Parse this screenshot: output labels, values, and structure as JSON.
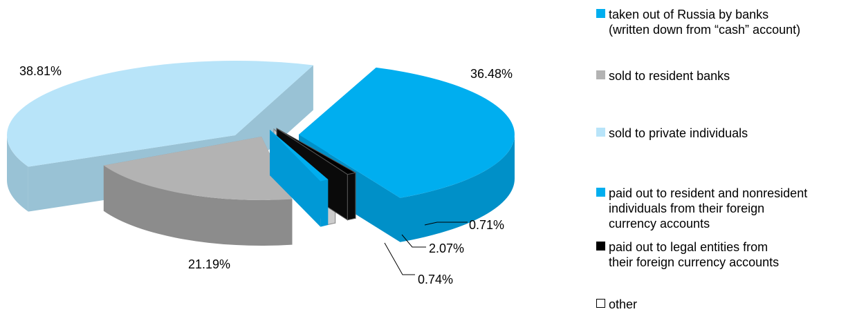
{
  "chart_data": {
    "type": "pie",
    "style": "3d-exploded",
    "slices": [
      {
        "label": "taken out of Russia by banks\n(written down from “cash” account)",
        "value": 36.48,
        "value_label": "36.48%",
        "color": "#00aeef"
      },
      {
        "label": "sold to resident banks",
        "value": 21.19,
        "value_label": "21.19%",
        "color": "#b3b3b3"
      },
      {
        "label": "sold to private individuals",
        "value": 38.81,
        "value_label": "38.81%",
        "color": "#b8e4f9"
      },
      {
        "label": "paid out to resident and nonresident\nindividuals from their foreign\ncurrency accounts",
        "value": 0.74,
        "value_label": "0.74%",
        "color": "#00aeef"
      },
      {
        "label": "paid out to legal entities from\ntheir foreign currency accounts",
        "value": 0.71,
        "value_label": "0.71%",
        "color": "#000000"
      },
      {
        "label": "other",
        "value": 2.07,
        "value_label": "2.07%",
        "color": "#ffffff"
      }
    ],
    "legend_position": "right"
  }
}
